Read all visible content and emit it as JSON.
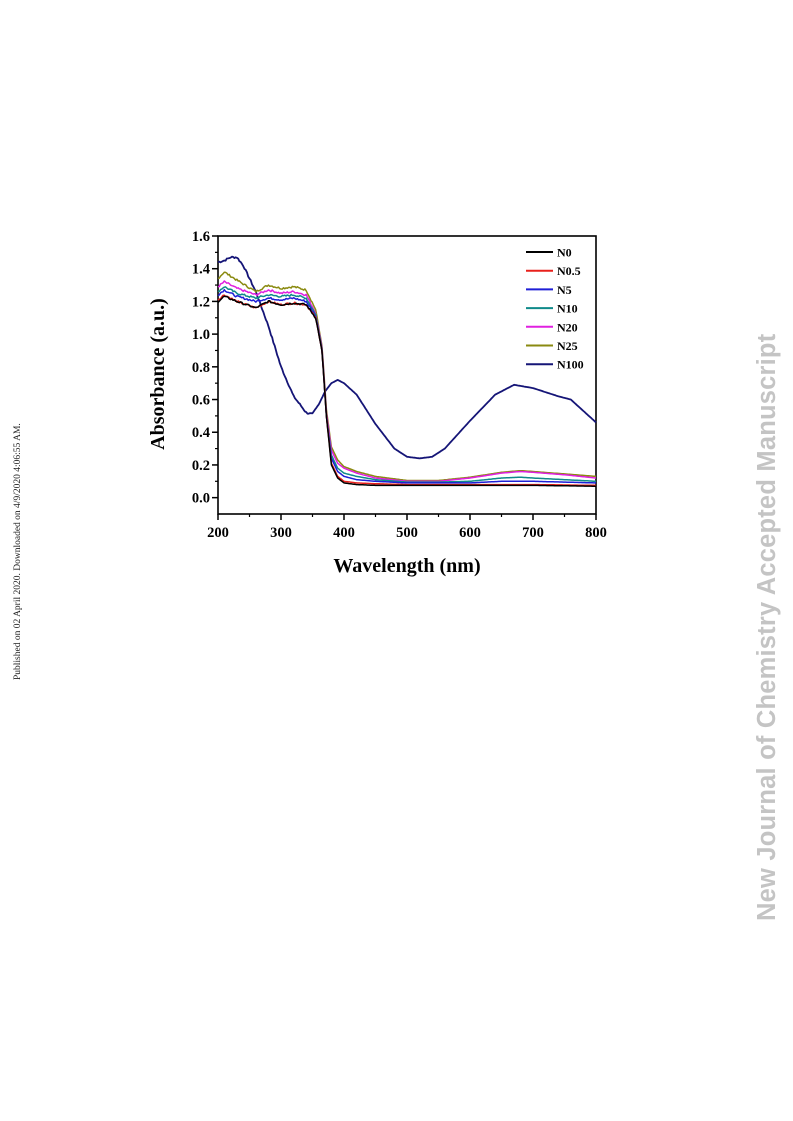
{
  "side_note": "Published on 02 April 2020. Downloaded on 4/9/2020 4:06:55 AM.",
  "watermark": "New Journal of Chemistry Accepted Manuscript",
  "chart_data": {
    "type": "line",
    "xlabel": "Wavelength (nm)",
    "ylabel": "Absorbance (a.u.)",
    "xlim": [
      200,
      800
    ],
    "ylim": [
      -0.1,
      1.6
    ],
    "xticks": [
      200,
      300,
      400,
      500,
      600,
      700,
      800
    ],
    "yticks": [
      0.0,
      0.2,
      0.4,
      0.6,
      0.8,
      1.0,
      1.2,
      1.4,
      1.6
    ],
    "grid": false,
    "legend_position": "top-right",
    "series": [
      {
        "name": "N0",
        "color": "#000000",
        "x": [
          200,
          210,
          230,
          260,
          280,
          300,
          320,
          340,
          355,
          365,
          372,
          380,
          390,
          400,
          420,
          450,
          500,
          600,
          700,
          800
        ],
        "y": [
          1.2,
          1.23,
          1.2,
          1.16,
          1.2,
          1.18,
          1.19,
          1.18,
          1.1,
          0.9,
          0.5,
          0.2,
          0.12,
          0.09,
          0.08,
          0.075,
          0.075,
          0.075,
          0.075,
          0.07
        ]
      },
      {
        "name": "N0.5",
        "color": "#e8201c",
        "x": [
          200,
          210,
          230,
          260,
          280,
          300,
          320,
          340,
          355,
          365,
          372,
          380,
          390,
          400,
          420,
          450,
          500,
          600,
          700,
          800
        ],
        "y": [
          1.21,
          1.24,
          1.2,
          1.16,
          1.2,
          1.18,
          1.19,
          1.18,
          1.1,
          0.9,
          0.5,
          0.21,
          0.13,
          0.1,
          0.09,
          0.085,
          0.08,
          0.08,
          0.08,
          0.075
        ]
      },
      {
        "name": "N5",
        "color": "#1f1fd6",
        "x": [
          200,
          210,
          230,
          260,
          280,
          300,
          320,
          340,
          355,
          365,
          372,
          380,
          390,
          400,
          420,
          450,
          500,
          550,
          600,
          650,
          680,
          700,
          750,
          800
        ],
        "y": [
          1.24,
          1.27,
          1.23,
          1.2,
          1.22,
          1.21,
          1.22,
          1.2,
          1.11,
          0.9,
          0.5,
          0.24,
          0.16,
          0.13,
          0.11,
          0.1,
          0.09,
          0.09,
          0.09,
          0.1,
          0.1,
          0.1,
          0.095,
          0.09
        ]
      },
      {
        "name": "N10",
        "color": "#0f8a8a",
        "x": [
          200,
          210,
          230,
          260,
          280,
          300,
          320,
          340,
          355,
          365,
          372,
          380,
          390,
          400,
          420,
          450,
          500,
          550,
          600,
          650,
          680,
          700,
          750,
          800
        ],
        "y": [
          1.26,
          1.29,
          1.25,
          1.22,
          1.24,
          1.23,
          1.24,
          1.22,
          1.12,
          0.91,
          0.5,
          0.26,
          0.18,
          0.15,
          0.13,
          0.11,
          0.095,
          0.095,
          0.1,
          0.12,
          0.125,
          0.12,
          0.11,
          0.1
        ]
      },
      {
        "name": "N20",
        "color": "#e020e0",
        "x": [
          200,
          210,
          230,
          260,
          280,
          300,
          320,
          340,
          355,
          365,
          372,
          380,
          390,
          400,
          420,
          450,
          500,
          550,
          600,
          650,
          680,
          700,
          750,
          800
        ],
        "y": [
          1.29,
          1.32,
          1.28,
          1.24,
          1.27,
          1.25,
          1.26,
          1.24,
          1.13,
          0.92,
          0.52,
          0.29,
          0.21,
          0.18,
          0.15,
          0.12,
          0.1,
          0.1,
          0.12,
          0.15,
          0.16,
          0.155,
          0.14,
          0.12
        ]
      },
      {
        "name": "N25",
        "color": "#8a8a10",
        "x": [
          200,
          210,
          230,
          260,
          280,
          300,
          320,
          340,
          355,
          365,
          372,
          380,
          390,
          400,
          420,
          450,
          500,
          550,
          600,
          650,
          680,
          700,
          750,
          800
        ],
        "y": [
          1.34,
          1.38,
          1.33,
          1.26,
          1.3,
          1.28,
          1.29,
          1.27,
          1.15,
          0.93,
          0.54,
          0.31,
          0.23,
          0.19,
          0.16,
          0.13,
          0.105,
          0.105,
          0.125,
          0.155,
          0.165,
          0.16,
          0.145,
          0.13
        ]
      },
      {
        "name": "N100",
        "color": "#151577",
        "x": [
          200,
          210,
          220,
          230,
          240,
          260,
          280,
          300,
          320,
          340,
          350,
          360,
          370,
          380,
          390,
          400,
          420,
          450,
          480,
          500,
          520,
          540,
          560,
          600,
          640,
          670,
          700,
          740,
          760,
          780,
          800
        ],
        "y": [
          1.44,
          1.45,
          1.47,
          1.47,
          1.42,
          1.26,
          1.05,
          0.8,
          0.62,
          0.52,
          0.51,
          0.57,
          0.65,
          0.7,
          0.72,
          0.7,
          0.63,
          0.45,
          0.3,
          0.25,
          0.24,
          0.25,
          0.3,
          0.47,
          0.63,
          0.69,
          0.67,
          0.62,
          0.6,
          0.53,
          0.46
        ]
      }
    ]
  }
}
